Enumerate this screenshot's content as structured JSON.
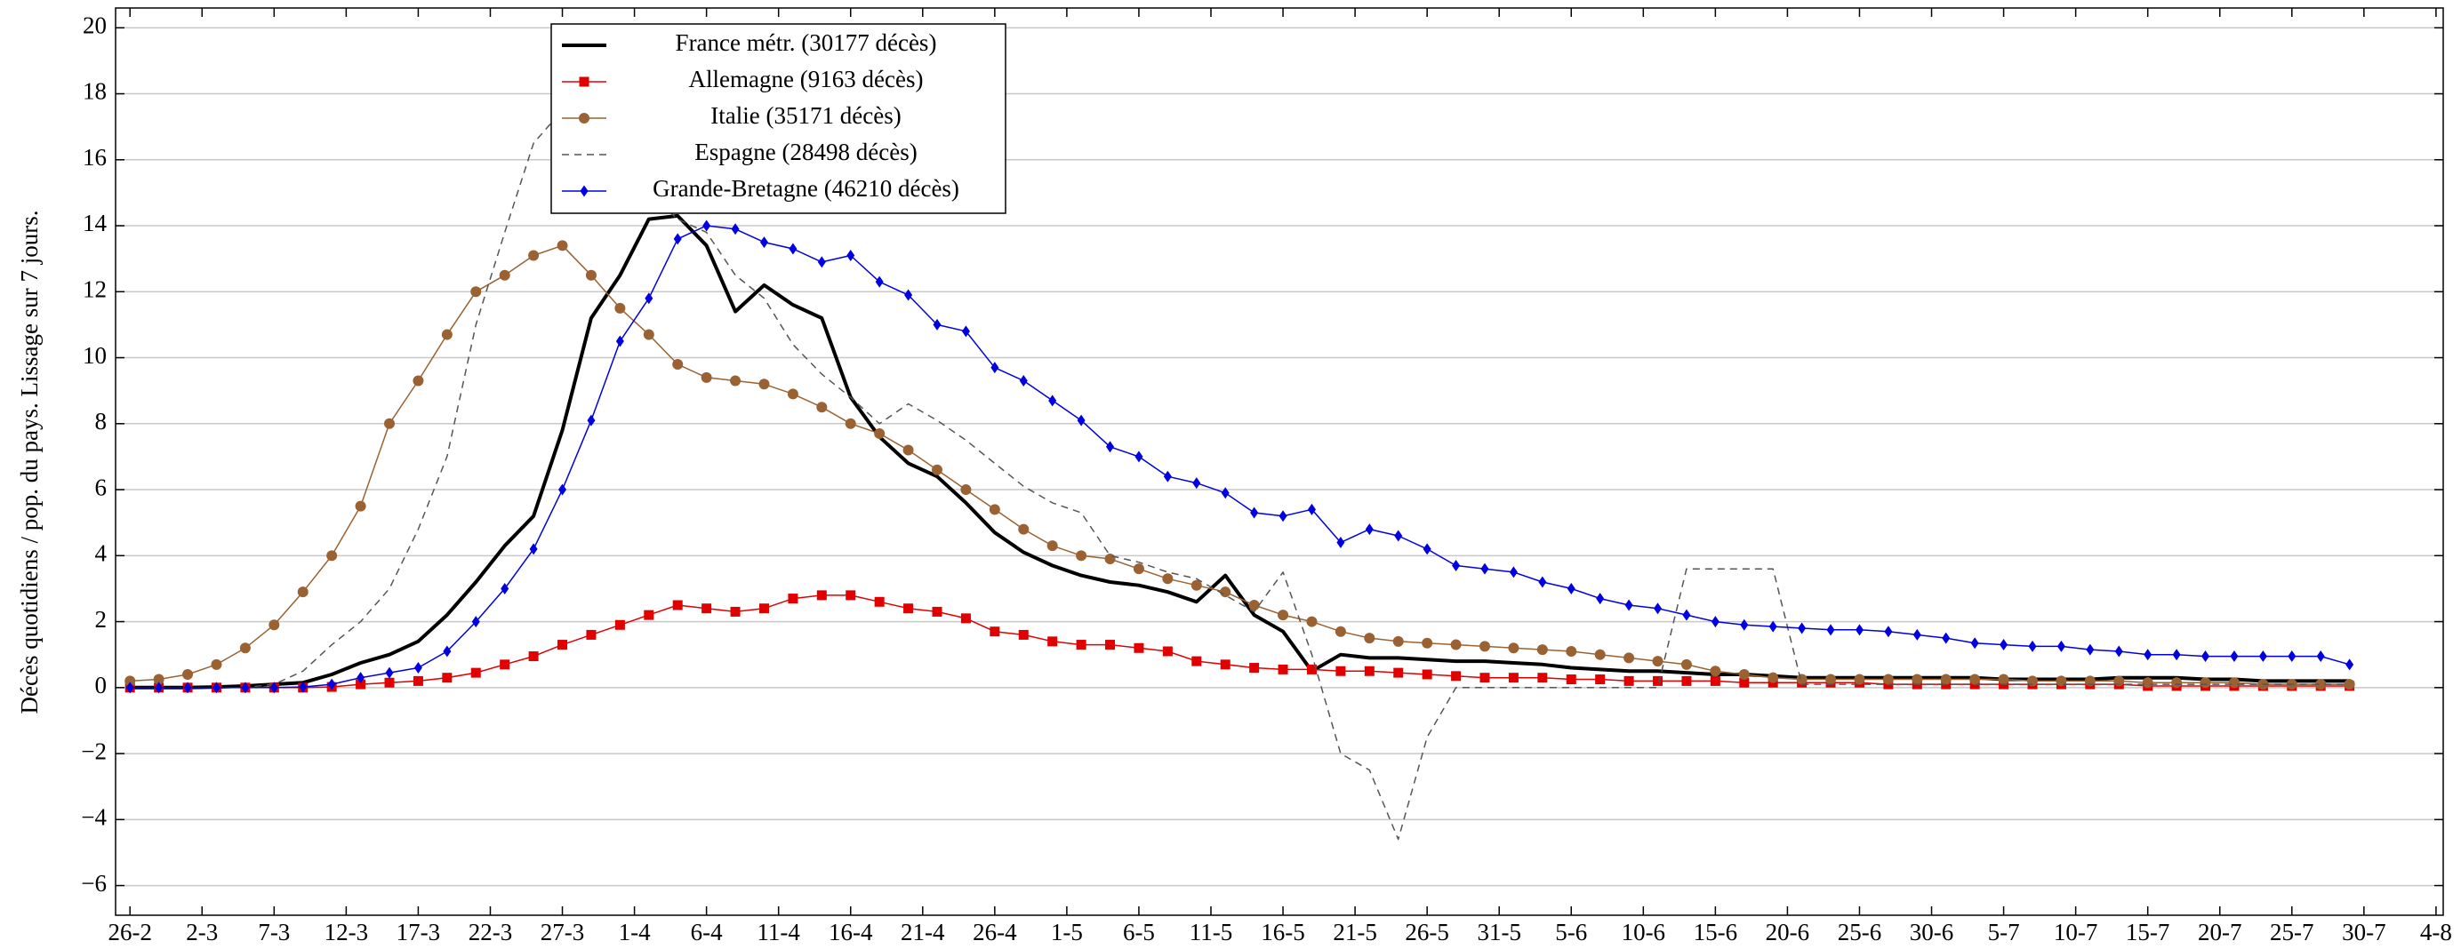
{
  "chart_data": {
    "type": "line",
    "ylabel": "Décès quotidiens / pop. du pays. Lissage sur 7 jours.",
    "x": [
      0,
      2,
      4,
      6,
      8,
      10,
      12,
      14,
      16,
      18,
      20,
      22,
      24,
      26,
      28,
      30,
      32,
      34,
      36,
      38,
      40,
      42,
      44,
      46,
      48,
      50,
      52,
      54,
      56,
      58,
      60,
      62,
      64,
      66,
      68,
      70,
      72,
      74,
      76,
      78,
      80,
      82,
      84,
      86,
      88,
      90,
      92,
      94,
      96,
      98,
      100,
      102,
      104,
      106,
      108,
      110,
      112,
      114,
      116,
      118,
      120,
      122,
      124,
      126,
      128,
      130,
      132,
      134,
      136,
      138,
      140,
      142,
      144,
      146,
      148,
      150,
      152,
      154
    ],
    "xlim": [
      -1,
      160.5
    ],
    "xticks": [
      {
        "value": 0,
        "label": "26-2"
      },
      {
        "value": 5,
        "label": "2-3"
      },
      {
        "value": 10,
        "label": "7-3"
      },
      {
        "value": 15,
        "label": "12-3"
      },
      {
        "value": 20,
        "label": "17-3"
      },
      {
        "value": 25,
        "label": "22-3"
      },
      {
        "value": 30,
        "label": "27-3"
      },
      {
        "value": 35,
        "label": "1-4"
      },
      {
        "value": 40,
        "label": "6-4"
      },
      {
        "value": 45,
        "label": "11-4"
      },
      {
        "value": 50,
        "label": "16-4"
      },
      {
        "value": 55,
        "label": "21-4"
      },
      {
        "value": 60,
        "label": "26-4"
      },
      {
        "value": 65,
        "label": "1-5"
      },
      {
        "value": 70,
        "label": "6-5"
      },
      {
        "value": 75,
        "label": "11-5"
      },
      {
        "value": 80,
        "label": "16-5"
      },
      {
        "value": 85,
        "label": "21-5"
      },
      {
        "value": 90,
        "label": "26-5"
      },
      {
        "value": 95,
        "label": "31-5"
      },
      {
        "value": 100,
        "label": "5-6"
      },
      {
        "value": 105,
        "label": "10-6"
      },
      {
        "value": 110,
        "label": "15-6"
      },
      {
        "value": 115,
        "label": "20-6"
      },
      {
        "value": 120,
        "label": "25-6"
      },
      {
        "value": 125,
        "label": "30-6"
      },
      {
        "value": 130,
        "label": "5-7"
      },
      {
        "value": 135,
        "label": "10-7"
      },
      {
        "value": 140,
        "label": "15-7"
      },
      {
        "value": 145,
        "label": "20-7"
      },
      {
        "value": 150,
        "label": "25-7"
      },
      {
        "value": 155,
        "label": "30-7"
      },
      {
        "value": 160,
        "label": "4-8"
      }
    ],
    "ylim": [
      -6.9,
      20.6
    ],
    "yticks": [
      {
        "value": -6,
        "label": "−6"
      },
      {
        "value": -4,
        "label": "−4"
      },
      {
        "value": -2,
        "label": "−2"
      },
      0,
      2,
      4,
      6,
      8,
      10,
      12,
      14,
      16,
      18,
      20
    ],
    "grid": true,
    "legend": "upper left",
    "series": [
      {
        "name": "France métr. (30177 décès)",
        "color": "#000000",
        "line_width": 4,
        "marker": null,
        "dashed": false,
        "values": [
          0,
          0,
          0,
          0.02,
          0.05,
          0.1,
          0.15,
          0.4,
          0.75,
          1.0,
          1.4,
          2.2,
          3.2,
          4.3,
          5.2,
          7.8,
          11.2,
          12.5,
          14.2,
          14.3,
          13.4,
          11.4,
          12.2,
          11.6,
          11.2,
          8.8,
          7.6,
          6.8,
          6.4,
          5.6,
          4.7,
          4.1,
          3.7,
          3.4,
          3.2,
          3.1,
          2.9,
          2.6,
          3.4,
          2.2,
          1.7,
          0.5,
          1.0,
          0.9,
          0.9,
          0.85,
          0.8,
          0.8,
          0.75,
          0.7,
          0.6,
          0.55,
          0.5,
          0.5,
          0.45,
          0.4,
          0.4,
          0.35,
          0.3,
          0.3,
          0.3,
          0.3,
          0.3,
          0.3,
          0.3,
          0.25,
          0.25,
          0.25,
          0.25,
          0.3,
          0.3,
          0.3,
          0.25,
          0.25,
          0.2,
          0.2,
          0.2,
          0.2
        ]
      },
      {
        "name": "Allemagne (9163 décès)",
        "color": "#e00000",
        "line_width": 1.5,
        "marker": "square",
        "dashed": false,
        "values": [
          0,
          0,
          0,
          0,
          0,
          0,
          0,
          0.02,
          0.1,
          0.15,
          0.2,
          0.3,
          0.45,
          0.7,
          0.95,
          1.3,
          1.6,
          1.9,
          2.2,
          2.5,
          2.4,
          2.3,
          2.4,
          2.7,
          2.8,
          2.8,
          2.6,
          2.4,
          2.3,
          2.1,
          1.7,
          1.6,
          1.4,
          1.3,
          1.3,
          1.2,
          1.1,
          0.8,
          0.7,
          0.6,
          0.55,
          0.55,
          0.5,
          0.5,
          0.45,
          0.4,
          0.35,
          0.3,
          0.3,
          0.3,
          0.25,
          0.25,
          0.2,
          0.2,
          0.2,
          0.2,
          0.15,
          0.15,
          0.15,
          0.15,
          0.15,
          0.1,
          0.1,
          0.1,
          0.1,
          0.1,
          0.1,
          0.1,
          0.1,
          0.1,
          0.05,
          0.05,
          0.05,
          0.05,
          0.05,
          0.05,
          0.05,
          0.05
        ]
      },
      {
        "name": "Italie (35171 décès)",
        "color": "#9a6232",
        "line_width": 1.5,
        "marker": "circle",
        "dashed": false,
        "values": [
          0.2,
          0.25,
          0.4,
          0.7,
          1.2,
          1.9,
          2.9,
          4.0,
          5.5,
          8.0,
          9.3,
          10.7,
          12.0,
          12.5,
          13.1,
          13.4,
          12.5,
          11.5,
          10.7,
          9.8,
          9.4,
          9.3,
          9.2,
          8.9,
          8.5,
          8.0,
          7.7,
          7.2,
          6.6,
          6.0,
          5.4,
          4.8,
          4.3,
          4.0,
          3.9,
          3.6,
          3.3,
          3.1,
          2.9,
          2.5,
          2.2,
          2.0,
          1.7,
          1.5,
          1.4,
          1.35,
          1.3,
          1.25,
          1.2,
          1.15,
          1.1,
          1.0,
          0.9,
          0.8,
          0.7,
          0.5,
          0.4,
          0.3,
          0.25,
          0.25,
          0.25,
          0.25,
          0.25,
          0.25,
          0.25,
          0.25,
          0.2,
          0.2,
          0.2,
          0.2,
          0.15,
          0.15,
          0.15,
          0.15,
          0.1,
          0.1,
          0.1,
          0.1
        ]
      },
      {
        "name": "Espagne (28498 décès)",
        "color": "#555555",
        "line_width": 1.5,
        "marker": null,
        "dashed": true,
        "values": [
          0,
          0,
          0,
          0,
          0,
          0.1,
          0.5,
          1.3,
          2.0,
          3.0,
          4.8,
          7.0,
          11.0,
          13.8,
          16.5,
          17.5,
          17.0,
          16.0,
          15.0,
          14.2,
          13.8,
          12.5,
          11.8,
          10.4,
          9.5,
          8.8,
          8.0,
          8.6,
          8.1,
          7.5,
          6.8,
          6.1,
          5.6,
          5.3,
          4.0,
          3.8,
          3.5,
          3.3,
          2.8,
          2.3,
          3.5,
          1.0,
          -2.0,
          -2.5,
          -4.6,
          -1.5,
          0,
          0,
          0,
          0,
          0,
          0,
          0,
          0,
          3.6,
          3.6,
          3.6,
          3.6,
          0.1,
          0.1,
          0.1,
          0.1,
          0.1,
          0.1,
          0.1,
          0.1,
          0.1,
          0.1,
          0.1,
          0.1,
          0.1,
          0.1,
          0.1,
          0.1,
          0.1,
          0.1,
          0.1,
          0.1
        ]
      },
      {
        "name": "Grande-Bretagne (46210 décès)",
        "color": "#0000e0",
        "line_width": 1.5,
        "marker": "diamond",
        "dashed": false,
        "values": [
          0,
          0,
          0,
          0,
          0,
          0,
          0.02,
          0.1,
          0.3,
          0.45,
          0.6,
          1.1,
          2.0,
          3.0,
          4.2,
          6.0,
          8.1,
          10.5,
          11.8,
          13.6,
          14.0,
          13.9,
          13.5,
          13.3,
          12.9,
          13.1,
          12.3,
          11.9,
          11.0,
          10.8,
          9.7,
          9.3,
          8.7,
          8.1,
          7.3,
          7.0,
          6.4,
          6.2,
          5.9,
          5.3,
          5.2,
          5.4,
          4.4,
          4.8,
          4.6,
          4.2,
          3.7,
          3.6,
          3.5,
          3.2,
          3.0,
          2.7,
          2.5,
          2.4,
          2.2,
          2.0,
          1.9,
          1.85,
          1.8,
          1.75,
          1.75,
          1.7,
          1.6,
          1.5,
          1.35,
          1.3,
          1.25,
          1.25,
          1.15,
          1.1,
          1.0,
          1.0,
          0.95,
          0.95,
          0.95,
          0.95,
          0.95,
          0.7
        ]
      }
    ]
  }
}
